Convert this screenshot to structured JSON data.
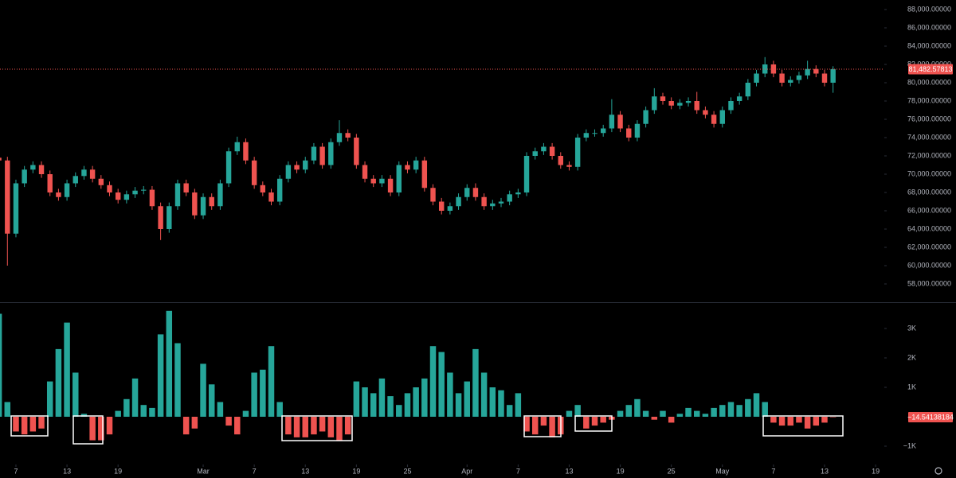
{
  "chart_data": [
    {
      "type": "candlestick",
      "up_color": "#26a69a",
      "down_color": "#ef5350",
      "xlim": [
        0.13,
        104.02
      ],
      "ylim": [
        56000,
        89043
      ],
      "xticks": [
        {
          "value": 2,
          "label": "7"
        },
        {
          "value": 8,
          "label": "13"
        },
        {
          "value": 14,
          "label": "19"
        },
        {
          "value": 24,
          "label": "Mar"
        },
        {
          "value": 30,
          "label": "7"
        },
        {
          "value": 36,
          "label": "13"
        },
        {
          "value": 42,
          "label": "19"
        },
        {
          "value": 48,
          "label": "25"
        },
        {
          "value": 55,
          "label": "Apr"
        },
        {
          "value": 61,
          "label": "7"
        },
        {
          "value": 67,
          "label": "13"
        },
        {
          "value": 73,
          "label": "19"
        },
        {
          "value": 79,
          "label": "25"
        },
        {
          "value": 85,
          "label": "May"
        },
        {
          "value": 91,
          "label": "7"
        },
        {
          "value": 97,
          "label": "13"
        },
        {
          "value": 103,
          "label": "19"
        }
      ],
      "yticks": [
        {
          "value": 58000,
          "label": "58,000.00000"
        },
        {
          "value": 60000,
          "label": "60,000.00000"
        },
        {
          "value": 62000,
          "label": "62,000.00000"
        },
        {
          "value": 64000,
          "label": "64,000.00000"
        },
        {
          "value": 66000,
          "label": "66,000.00000"
        },
        {
          "value": 68000,
          "label": "68,000.00000"
        },
        {
          "value": 70000,
          "label": "70,000.00000"
        },
        {
          "value": 72000,
          "label": "72,000.00000"
        },
        {
          "value": 74000,
          "label": "74,000.00000"
        },
        {
          "value": 76000,
          "label": "76,000.00000"
        },
        {
          "value": 78000,
          "label": "78,000.00000"
        },
        {
          "value": 80000,
          "label": "80,000.00000"
        },
        {
          "value": 82000,
          "label": "82,000.00000"
        },
        {
          "value": 84000,
          "label": "84,000.00000"
        },
        {
          "value": 86000,
          "label": "86,000.00000"
        },
        {
          "value": 88000,
          "label": "88,000.00000"
        }
      ],
      "last_price": {
        "value": 81482.57813,
        "label": "81,482.57813"
      },
      "open": [
        71800,
        71500,
        63500,
        69000,
        70500,
        71000,
        70000,
        68000,
        67500,
        69000,
        69800,
        70500,
        69500,
        68800,
        68000,
        67200,
        67800,
        68200,
        68300,
        66500,
        64000,
        66500,
        69000,
        68000,
        65500,
        67500,
        66500,
        69000,
        72500,
        73500,
        71500,
        68800,
        68000,
        67000,
        69500,
        71000,
        70500,
        71500,
        73000,
        71000,
        73500,
        74500,
        74000,
        71000,
        69500,
        69000,
        69500,
        68000,
        71000,
        70500,
        71500,
        68500,
        67000,
        66000,
        66500,
        67500,
        68500,
        67500,
        66500,
        66800,
        67000,
        67800,
        68000,
        72000,
        72500,
        73000,
        72000,
        71000,
        70800,
        74000,
        74500,
        74500,
        75000,
        76500,
        75000,
        74000,
        75500,
        77000,
        78500,
        78000,
        77500,
        77800,
        78000,
        77000,
        76500,
        75500,
        77000,
        78000,
        78500,
        80000,
        81000,
        82000,
        81000,
        80000,
        80300,
        80800,
        81500,
        81000,
        80000
      ],
      "high": [
        72200,
        71900,
        69400,
        70900,
        71400,
        71400,
        70400,
        68400,
        69400,
        70200,
        70900,
        70900,
        69900,
        69200,
        68400,
        68200,
        68600,
        68700,
        68700,
        66900,
        66900,
        69400,
        69400,
        68400,
        67900,
        67900,
        69400,
        72900,
        74100,
        73900,
        71900,
        69200,
        68400,
        69900,
        71400,
        71400,
        71900,
        73400,
        73400,
        73900,
        75900,
        74900,
        74400,
        71400,
        69900,
        69900,
        69900,
        71400,
        71400,
        71900,
        71900,
        68900,
        67400,
        66900,
        67900,
        68900,
        69000,
        67900,
        67200,
        67400,
        68200,
        68400,
        72400,
        72900,
        73400,
        73400,
        72400,
        71400,
        74400,
        74900,
        74900,
        75400,
        78200,
        76900,
        75400,
        75900,
        77400,
        79400,
        78900,
        78400,
        78200,
        78400,
        79000,
        77400,
        76900,
        77400,
        78400,
        78900,
        80400,
        81400,
        82800,
        82400,
        81400,
        80700,
        81200,
        82400,
        81900,
        81400,
        81800
      ],
      "low": [
        71100,
        60000,
        63100,
        68600,
        70100,
        69600,
        67600,
        67100,
        67100,
        68600,
        69400,
        69100,
        68400,
        67600,
        66800,
        66800,
        67400,
        67800,
        66100,
        62800,
        63600,
        66100,
        67600,
        65100,
        65100,
        66100,
        66100,
        68600,
        72100,
        71100,
        68400,
        67600,
        66600,
        66600,
        69100,
        70100,
        70100,
        71100,
        70600,
        70600,
        73100,
        73600,
        70600,
        69100,
        68600,
        68600,
        67600,
        67600,
        70100,
        70100,
        68100,
        66600,
        65600,
        65600,
        66100,
        67100,
        67100,
        66100,
        66100,
        66400,
        66600,
        67400,
        67600,
        71600,
        72100,
        71600,
        70600,
        70400,
        70400,
        73600,
        74100,
        74100,
        74600,
        74600,
        73600,
        73600,
        75100,
        76600,
        77600,
        77100,
        77100,
        77400,
        76600,
        76100,
        75100,
        75100,
        76600,
        77600,
        78100,
        79600,
        80600,
        80600,
        79600,
        79600,
        79900,
        80400,
        80600,
        79600,
        78900
      ],
      "close": [
        71500,
        63500,
        69000,
        70500,
        71000,
        70000,
        68000,
        67500,
        69000,
        69800,
        70500,
        69500,
        68800,
        68000,
        67200,
        67800,
        68200,
        68300,
        66500,
        64000,
        66500,
        69000,
        68000,
        65500,
        67500,
        66500,
        69000,
        72500,
        73500,
        71500,
        68800,
        68000,
        67000,
        69500,
        71000,
        70500,
        71500,
        73000,
        71000,
        73500,
        74500,
        74000,
        71000,
        69500,
        69000,
        69500,
        68000,
        71000,
        70500,
        71500,
        68500,
        67000,
        66000,
        66500,
        67500,
        68500,
        67500,
        66500,
        66800,
        67000,
        67800,
        68000,
        72000,
        72500,
        73000,
        72000,
        71000,
        70800,
        74000,
        74500,
        74500,
        75000,
        76500,
        75000,
        74000,
        75500,
        77000,
        78500,
        78000,
        77500,
        77800,
        78000,
        77000,
        76500,
        75500,
        77000,
        78000,
        78500,
        80000,
        81000,
        82000,
        81000,
        80000,
        80300,
        80800,
        81500,
        81000,
        80000,
        81482.57813
      ]
    },
    {
      "type": "histogram",
      "up_color": "#26a69a",
      "down_color": "#ef5350",
      "ylim": [
        -1514,
        3838
      ],
      "yticks": [
        {
          "value": -1000,
          "label": "−1K"
        },
        {
          "value": 1000,
          "label": "1K"
        },
        {
          "value": 2000,
          "label": "2K"
        },
        {
          "value": 3000,
          "label": "3K"
        }
      ],
      "last_value": {
        "value": -14.54138184,
        "label": "−14.54138184"
      },
      "values": [
        3500,
        500,
        -500,
        -600,
        -500,
        -400,
        1200,
        2300,
        3200,
        1500,
        100,
        -800,
        -800,
        -600,
        200,
        600,
        1300,
        400,
        300,
        2800,
        3600,
        2500,
        -600,
        -400,
        1800,
        1100,
        500,
        -300,
        -600,
        200,
        1500,
        1600,
        2400,
        500,
        -600,
        -700,
        -700,
        -600,
        -500,
        -700,
        -800,
        -600,
        1200,
        1000,
        800,
        1300,
        700,
        400,
        800,
        1000,
        1300,
        2400,
        2200,
        1500,
        800,
        1200,
        2300,
        1500,
        1000,
        900,
        400,
        800,
        -500,
        -600,
        -300,
        -700,
        -600,
        200,
        400,
        -400,
        -300,
        -200,
        -100,
        200,
        400,
        600,
        200,
        -100,
        200,
        -200,
        100,
        300,
        200,
        100,
        300,
        400,
        500,
        400,
        600,
        800,
        500,
        -200,
        -300,
        -300,
        -200,
        -400,
        -300,
        -200,
        -14.54138184
      ]
    }
  ]
}
